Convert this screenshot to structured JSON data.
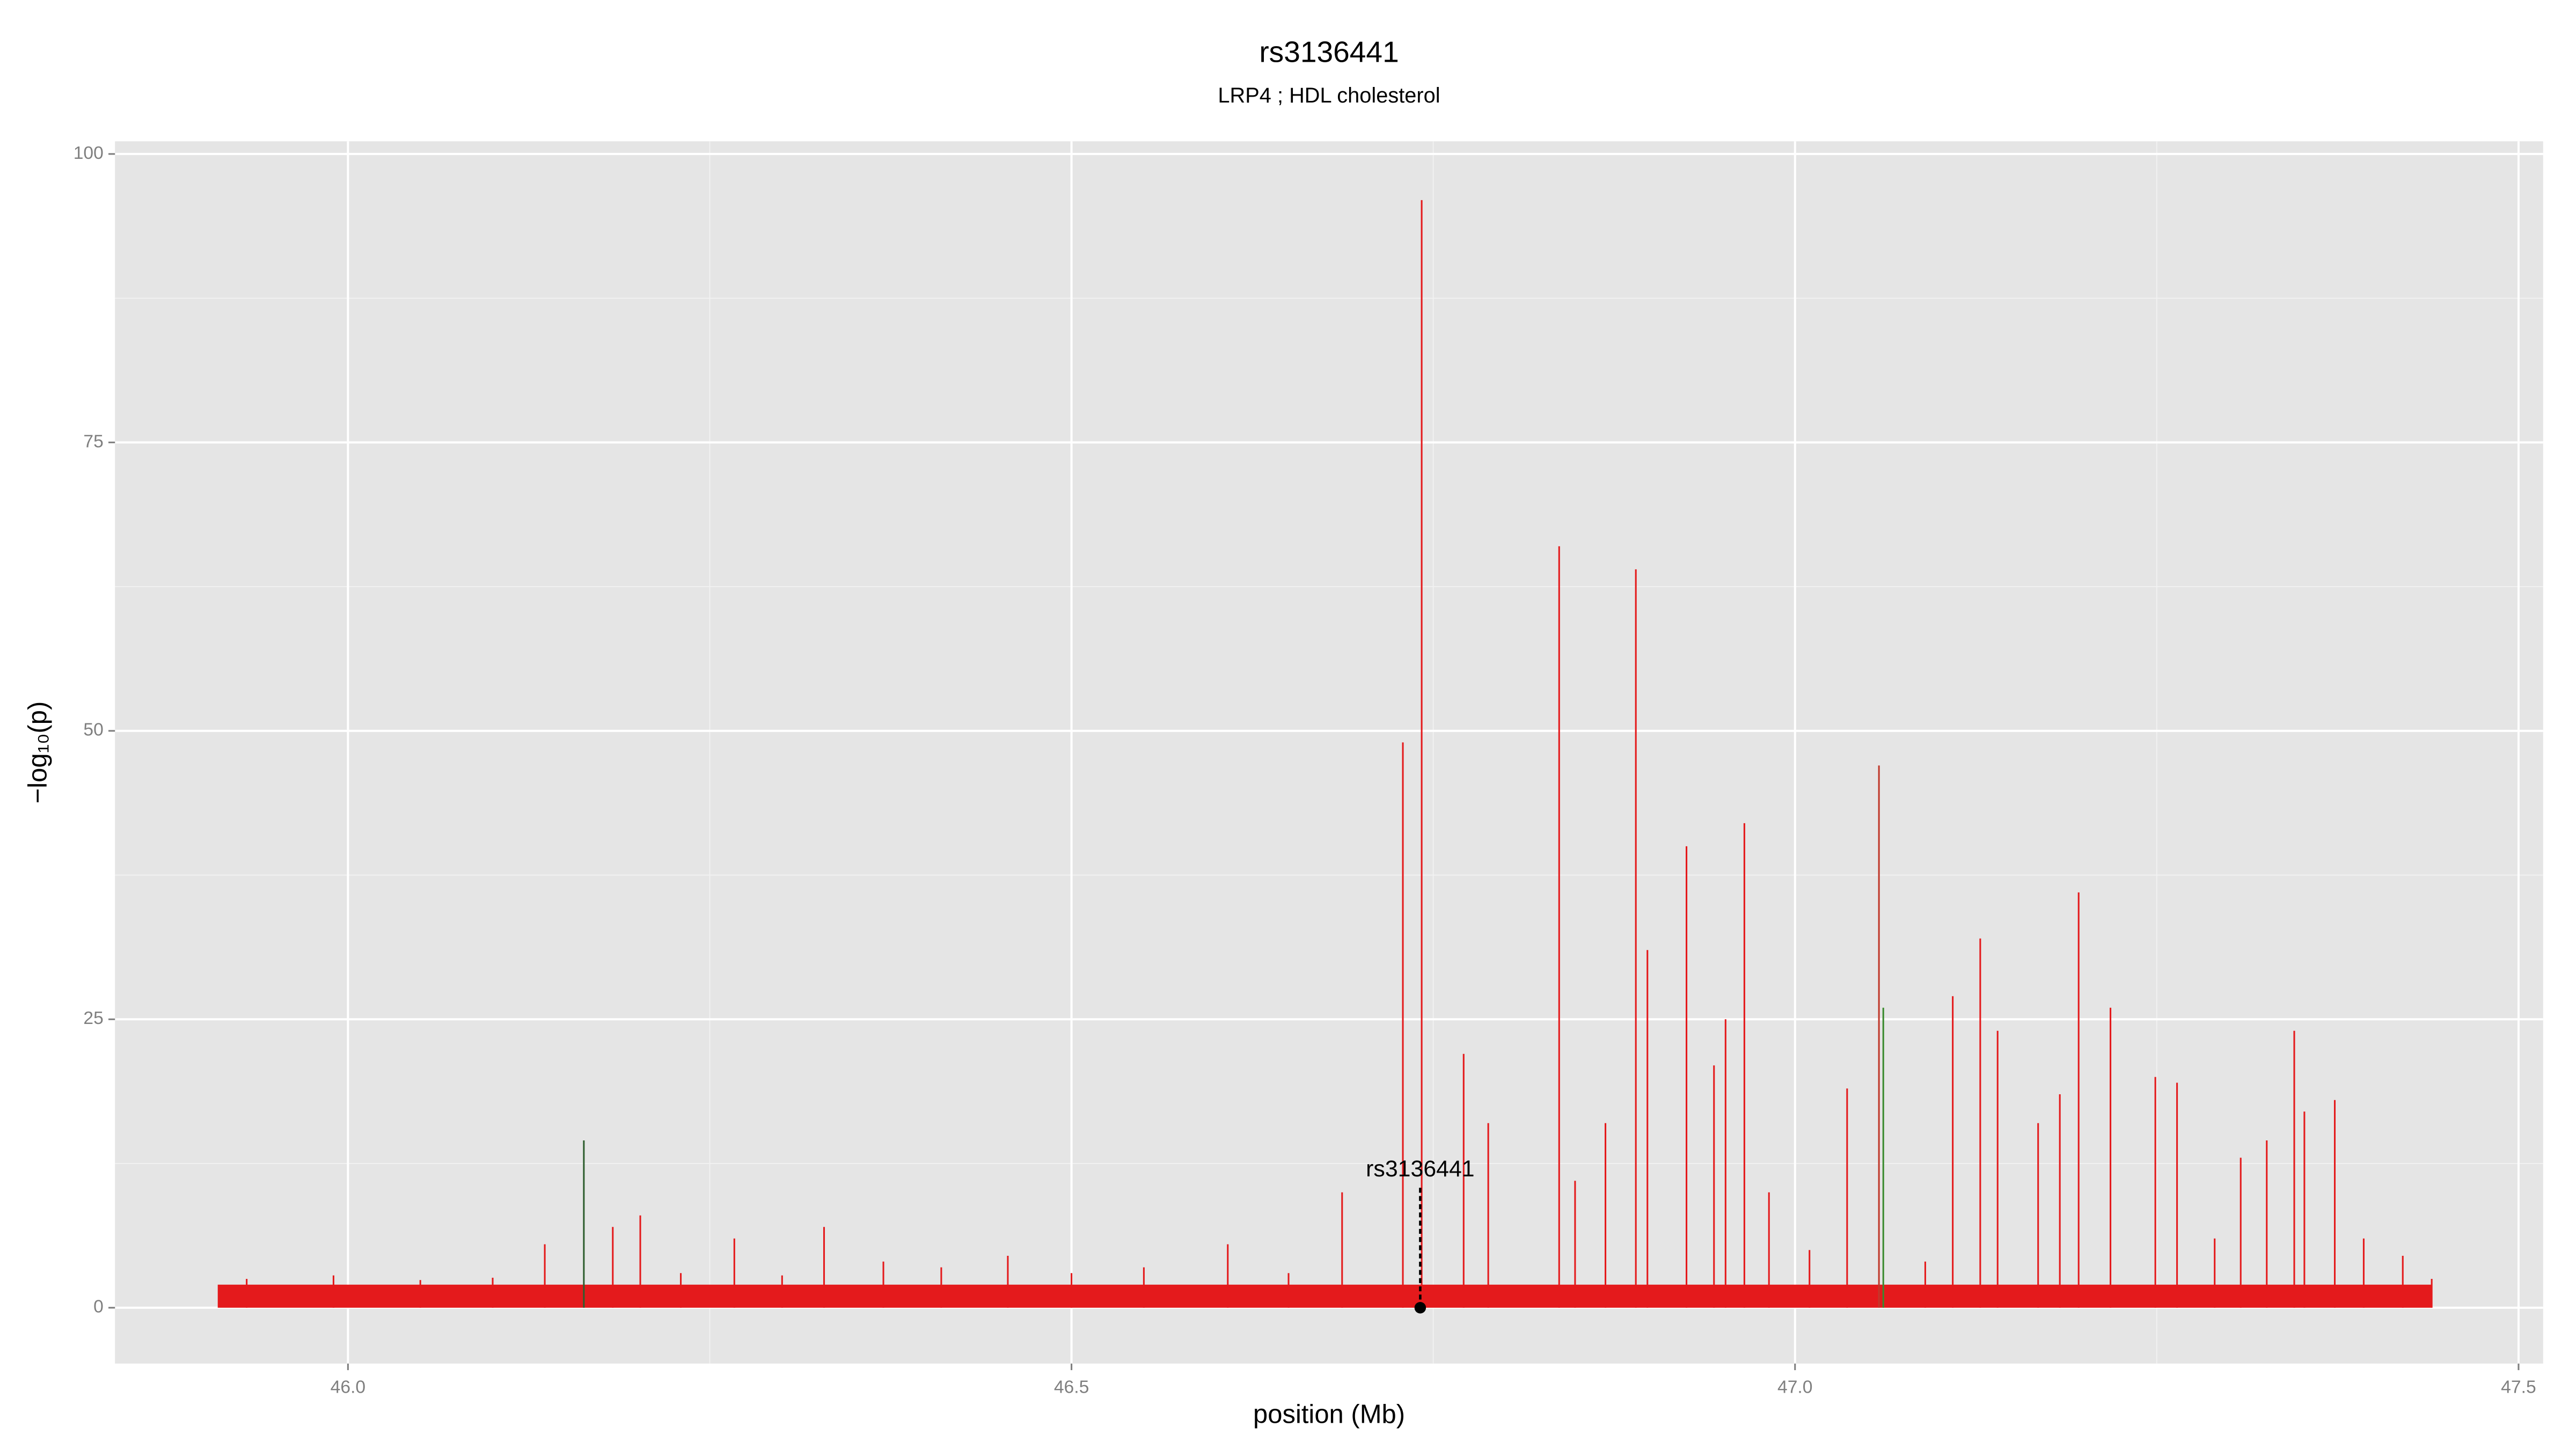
{
  "chart_data": {
    "type": "spike",
    "title": "rs3136441",
    "subtitle": "LRP4 ; HDL cholesterol",
    "xlabel": "position (Mb)",
    "ylabel": "−log₁₀(p)",
    "xlim": [
      45.839,
      47.517
    ],
    "ylim": [
      -4.84,
      101.1
    ],
    "xticks": [
      {
        "value": 46,
        "label": "46.0"
      },
      46.5,
      {
        "value": 47,
        "label": "47.0"
      },
      47.5
    ],
    "yticks": [
      0,
      25,
      50,
      75,
      100
    ],
    "xminor_grid": [
      46.25,
      46.75,
      47.25
    ],
    "yminor_grid": [
      12.5,
      37.5,
      62.5,
      87.5
    ],
    "grid": true,
    "color": "#e41a1c",
    "x": [
      45.93,
      45.99,
      46.05,
      46.1,
      46.136,
      46.163,
      46.183,
      46.202,
      46.23,
      46.267,
      46.3,
      46.329,
      46.37,
      46.41,
      46.456,
      46.5,
      46.55,
      46.608,
      46.65,
      46.687,
      46.729,
      46.742,
      46.771,
      46.788,
      46.837,
      46.848,
      46.869,
      46.89,
      46.898,
      46.925,
      46.944,
      46.952,
      46.965,
      46.982,
      47.01,
      47.036,
      47.058,
      47.061,
      47.09,
      47.109,
      47.128,
      47.14,
      47.168,
      47.183,
      47.196,
      47.218,
      47.249,
      47.264,
      47.29,
      47.308,
      47.326,
      47.345,
      47.352,
      47.373,
      47.393,
      47.42,
      47.44
    ],
    "values": [
      2.5,
      2.8,
      2.4,
      2.6,
      5.5,
      14.5,
      7,
      8,
      3,
      6,
      2.8,
      7,
      4,
      3.5,
      4.5,
      3,
      3.5,
      5.5,
      3,
      10,
      49,
      96,
      22,
      16,
      66,
      11,
      16,
      64,
      31,
      40,
      21,
      25,
      42,
      10,
      5,
      19,
      47,
      26,
      4,
      27,
      32,
      24,
      16,
      18.5,
      36,
      26,
      20,
      19.5,
      6,
      13,
      14.5,
      24,
      17,
      18,
      6,
      4.5,
      2.5
    ],
    "point_colors": [
      "#e41a1c",
      "#e41a1c",
      "#e41a1c",
      "#e41a1c",
      "#e41a1c",
      "#2e5e2e",
      "#e41a1c",
      "#e41a1c",
      "#e41a1c",
      "#e41a1c",
      "#e41a1c",
      "#e41a1c",
      "#e41a1c",
      "#e41a1c",
      "#e41a1c",
      "#e41a1c",
      "#e41a1c",
      "#e41a1c",
      "#e41a1c",
      "#e41a1c",
      "#e41a1c",
      "#e41a1c",
      "#e41a1c",
      "#e41a1c",
      "#e41a1c",
      "#e41a1c",
      "#e41a1c",
      "#e41a1c",
      "#e41a1c",
      "#e41a1c",
      "#e41a1c",
      "#e41a1c",
      "#e41a1c",
      "#e41a1c",
      "#e41a1c",
      "#e41a1c",
      "#c0392b",
      "#3a8a2e",
      "#e41a1c",
      "#e41a1c",
      "#e41a1c",
      "#e41a1c",
      "#e41a1c",
      "#e41a1c",
      "#e41a1c",
      "#e41a1c",
      "#e41a1c",
      "#e41a1c",
      "#e41a1c",
      "#e41a1c",
      "#e41a1c",
      "#e41a1c",
      "#e41a1c",
      "#e41a1c",
      "#e41a1c",
      "#e41a1c",
      "#e41a1c"
    ],
    "baseline_range": [
      45.91,
      47.44
    ],
    "baseline_height": 2,
    "highlight": {
      "label": "rs3136441",
      "x": 46.741,
      "y": 0,
      "line_top": 10.5,
      "label_y": 11.9
    }
  }
}
